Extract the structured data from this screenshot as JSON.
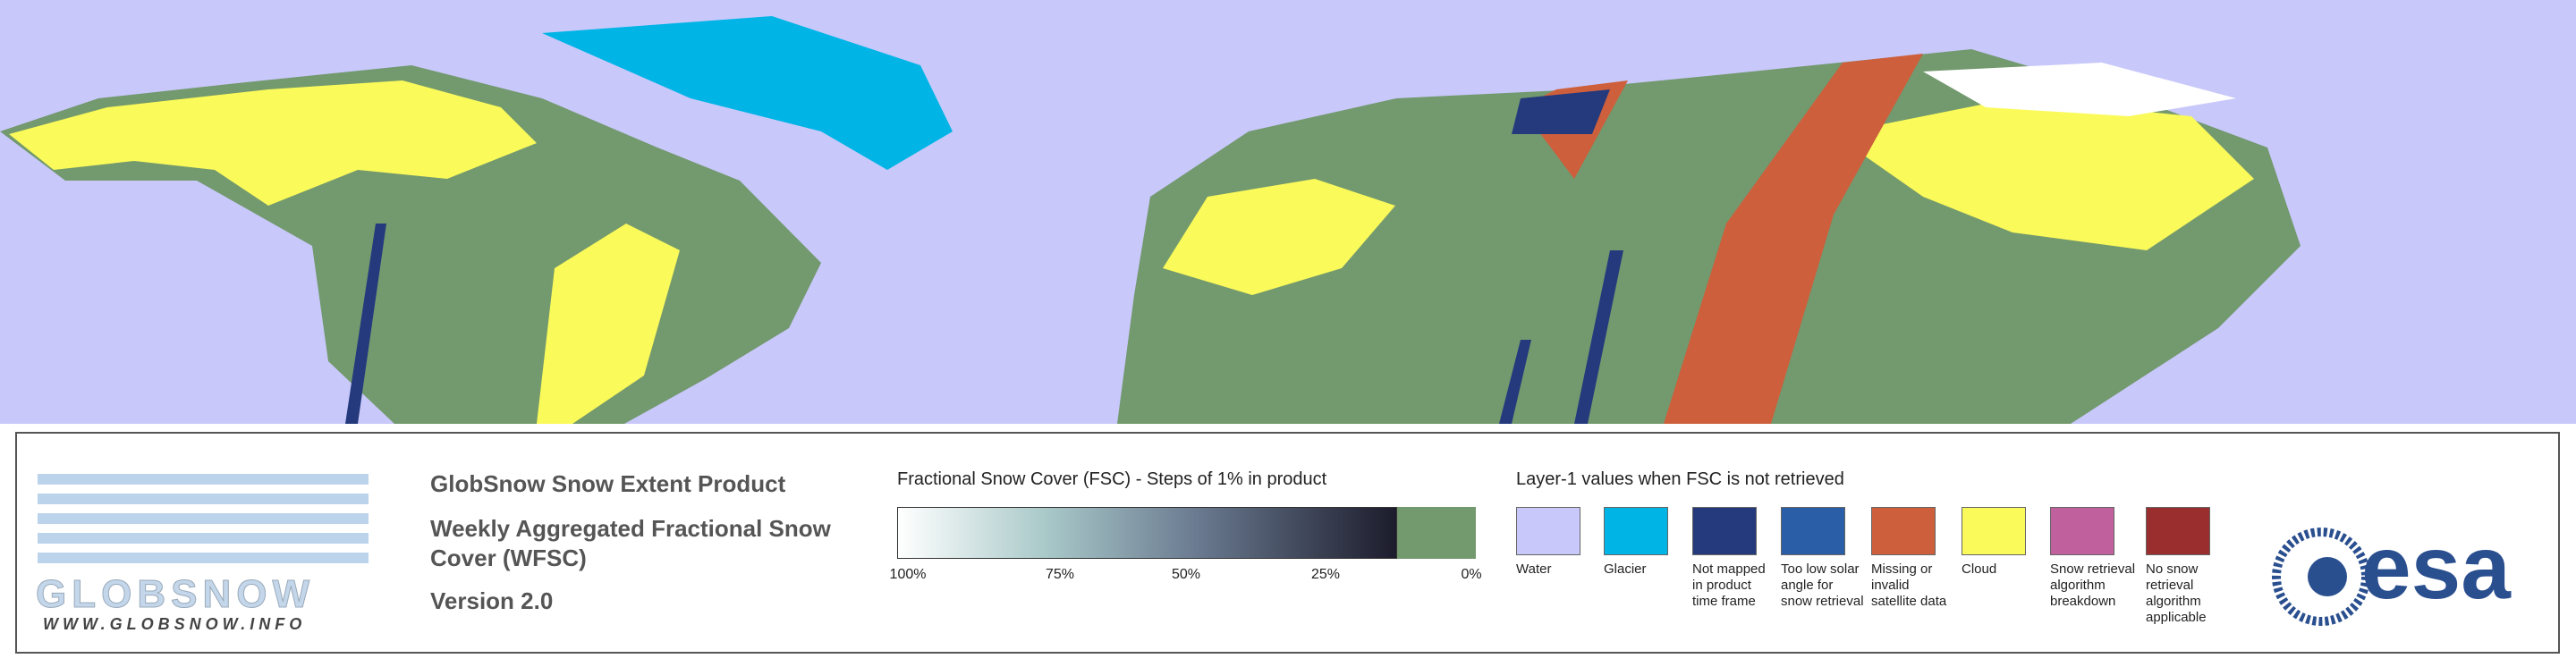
{
  "header": {
    "logo": "GLOBSNOW",
    "website": "WWW.GLOBSNOW.INFO",
    "product": "GlobSnow Snow Extent Product",
    "subtitle": "Weekly Aggregated Fractional Snow Cover (WFSC)",
    "version": "Version 2.0",
    "agency": "esa"
  },
  "fsc_legend": {
    "title": "Fractional Snow Cover (FSC) - Steps of 1% in product",
    "ticks": [
      "100%",
      "75%",
      "50%",
      "25%",
      "0%"
    ]
  },
  "layer1_legend": {
    "title": "Layer-1 values when FSC is not retrieved",
    "classes": [
      {
        "label": "Water",
        "color": "#c8c8fa"
      },
      {
        "label": "Glacier",
        "color": "#00b4e6"
      },
      {
        "label": "Not mapped in product time frame",
        "color": "#253a7d"
      },
      {
        "label": "Too low solar angle for snow retrieval",
        "color": "#2a5fa8"
      },
      {
        "label": "Missing or invalid satellite data",
        "color": "#cd5f3c"
      },
      {
        "label": "Cloud",
        "color": "#fafa5a"
      },
      {
        "label": "Snow retrieval algorithm breakdown",
        "color": "#c0609c"
      },
      {
        "label": "No snow retrieval algorithm applicable",
        "color": "#9a2e2e"
      }
    ]
  }
}
